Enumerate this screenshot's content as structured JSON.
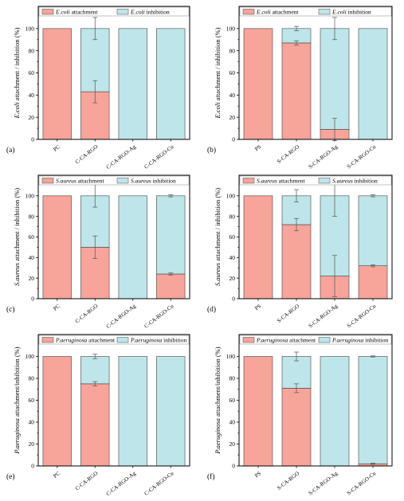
{
  "colors": {
    "attachment": "#f7a49b",
    "inhibition": "#bde5ea"
  },
  "chart_data": [
    {
      "type": "bar",
      "panel": "(a)",
      "categories": [
        "PC",
        "C-CA-RGO",
        "C-CA-RGO-Ag",
        "C-CA-RGO-Cu"
      ],
      "series": [
        {
          "name_italic": "E.coli",
          "name_rest": " attachment",
          "values": [
            100,
            43,
            0,
            0
          ],
          "errors": [
            0,
            10,
            0,
            0
          ]
        },
        {
          "name_italic": "E.coli",
          "name_rest": " inhibition",
          "values": [
            0,
            57,
            100,
            100
          ],
          "errors": [
            0,
            10,
            0,
            0
          ]
        }
      ],
      "ylabel_italic": "E.coli",
      "ylabel_rest": " attachment / inhibition (%)",
      "yticks": [
        0,
        20,
        40,
        60,
        80,
        100
      ],
      "ylim": [
        0,
        120
      ],
      "stacked": true
    },
    {
      "type": "bar",
      "panel": "(b)",
      "categories": [
        "PS",
        "S-CA-RGO",
        "S-CA-RGO-Ag",
        "S-CA-RGO-Cu"
      ],
      "series": [
        {
          "name_italic": "E.coli",
          "name_rest": " attachment",
          "values": [
            100,
            87,
            9,
            0
          ],
          "errors": [
            0,
            2,
            10,
            0
          ]
        },
        {
          "name_italic": "E.coli",
          "name_rest": " inhibition",
          "values": [
            0,
            13,
            91,
            100
          ],
          "errors": [
            0,
            2,
            10,
            0
          ]
        }
      ],
      "ylabel_italic": "E.coli",
      "ylabel_rest": " attachment / inhibition (%)",
      "yticks": [
        0,
        20,
        40,
        60,
        80,
        100
      ],
      "ylim": [
        0,
        120
      ],
      "stacked": true
    },
    {
      "type": "bar",
      "panel": "(c)",
      "categories": [
        "PC",
        "C-CA-RGO",
        "C-CA-RGO-Ag",
        "C-CA-RGO-Cu"
      ],
      "series": [
        {
          "name_italic": "S.aureus",
          "name_rest": " attachment",
          "values": [
            100,
            50,
            0,
            24
          ],
          "errors": [
            0,
            11,
            0,
            1
          ]
        },
        {
          "name_italic": "S.aureus",
          "name_rest": " inhibition",
          "values": [
            0,
            50,
            100,
            76
          ],
          "errors": [
            0,
            11,
            0,
            1
          ]
        }
      ],
      "ylabel_italic": "S.aureus",
      "ylabel_rest": " attachment / inhibition (%)",
      "yticks": [
        0,
        20,
        40,
        60,
        80,
        100
      ],
      "ylim": [
        0,
        120
      ],
      "stacked": true
    },
    {
      "type": "bar",
      "panel": "(d)",
      "categories": [
        "PS",
        "S-CA-RGO",
        "S-CA-RGO-Ag",
        "S-CA-RGO-Cu"
      ],
      "series": [
        {
          "name_italic": "S.aureus",
          "name_rest": " attachment",
          "values": [
            100,
            72,
            22,
            32
          ],
          "errors": [
            0,
            6,
            20,
            1
          ]
        },
        {
          "name_italic": "S.aureus",
          "name_rest": " inhibition",
          "values": [
            0,
            28,
            78,
            68
          ],
          "errors": [
            0,
            6,
            20,
            1
          ]
        }
      ],
      "ylabel_italic": "S.aureus",
      "ylabel_rest": " attachment / inhibition (%)",
      "yticks": [
        0,
        20,
        40,
        60,
        80,
        100
      ],
      "ylim": [
        0,
        120
      ],
      "stacked": true
    },
    {
      "type": "bar",
      "panel": "(e)",
      "categories": [
        "PC",
        "C-CA-RGO",
        "C-CA-RGO-Ag",
        "C-CA-RGO-Cu"
      ],
      "series": [
        {
          "name_italic": "P.aeruginosa",
          "name_rest": " attachment",
          "values": [
            100,
            75,
            0,
            0
          ],
          "errors": [
            0,
            2,
            0,
            0
          ]
        },
        {
          "name_italic": "P.aeruginosa",
          "name_rest": " inhibition",
          "values": [
            0,
            25,
            100,
            100
          ],
          "errors": [
            0,
            2,
            0,
            0
          ]
        }
      ],
      "ylabel_italic": "P.aeruginosa",
      "ylabel_rest": " attachment/inhibition (%)",
      "yticks": [
        0,
        20,
        40,
        60,
        80,
        100
      ],
      "ylim": [
        0,
        120
      ],
      "stacked": true
    },
    {
      "type": "bar",
      "panel": "(f)",
      "categories": [
        "PS",
        "S-CA-RGO",
        "S-CA-RGO-Ag",
        "S-CA-RGO-Cu"
      ],
      "series": [
        {
          "name_italic": "P.aeruginosa",
          "name_rest": " attachment",
          "values": [
            100,
            71,
            0,
            2
          ],
          "errors": [
            0,
            4,
            0,
            0.5
          ]
        },
        {
          "name_italic": "P.aeruginosa",
          "name_rest": " inhibition",
          "values": [
            0,
            29,
            100,
            98
          ],
          "errors": [
            0,
            4,
            0,
            0.5
          ]
        }
      ],
      "ylabel_italic": "P.aeruginosa",
      "ylabel_rest": " attachment/inhibition (%)",
      "yticks": [
        0,
        20,
        40,
        60,
        80,
        100
      ],
      "ylim": [
        0,
        120
      ],
      "stacked": true
    }
  ]
}
